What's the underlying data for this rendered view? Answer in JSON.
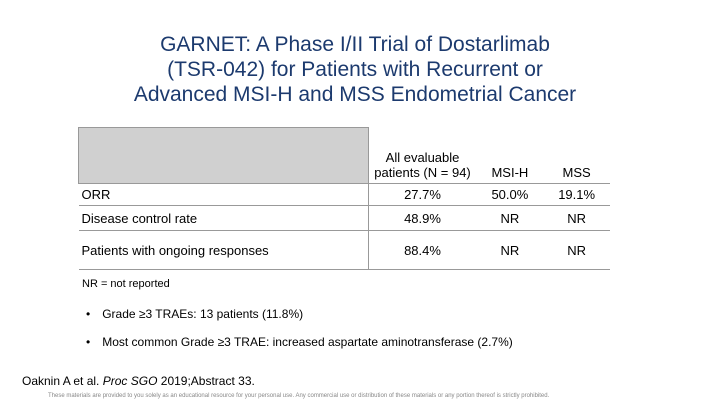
{
  "title": {
    "lines": [
      "GARNET: A Phase I/II Trial of Dostarlimab",
      "(TSR-042) for Patients with Recurrent or",
      "Advanced MSI-H and MSS Endometrial Cancer"
    ]
  },
  "table": {
    "columns": [
      "",
      "All evaluable patients (N = 94)",
      "MSI-H",
      "MSS"
    ],
    "rows": [
      [
        "ORR",
        "27.7%",
        "50.0%",
        "19.1%"
      ],
      [
        "Disease control rate",
        "48.9%",
        "NR",
        "NR"
      ],
      [
        "Patients with ongoing responses",
        "88.4%",
        "NR",
        "NR"
      ]
    ]
  },
  "footnote": "NR = not reported",
  "bullets": [
    "Grade ≥3 TRAEs: 13 patients (11.8%)",
    "Most common Grade ≥3 TRAE: increased aspartate aminotransferase (2.7%)"
  ],
  "citation": {
    "authors": "Oaknin A et al.",
    "journal": "Proc SGO",
    "detail": "2019;Abstract 33."
  },
  "disclaimer": "These materials are provided to you solely as an educational resource for your personal use. Any commercial use or distribution of these materials or any portion thereof is strictly prohibited."
}
